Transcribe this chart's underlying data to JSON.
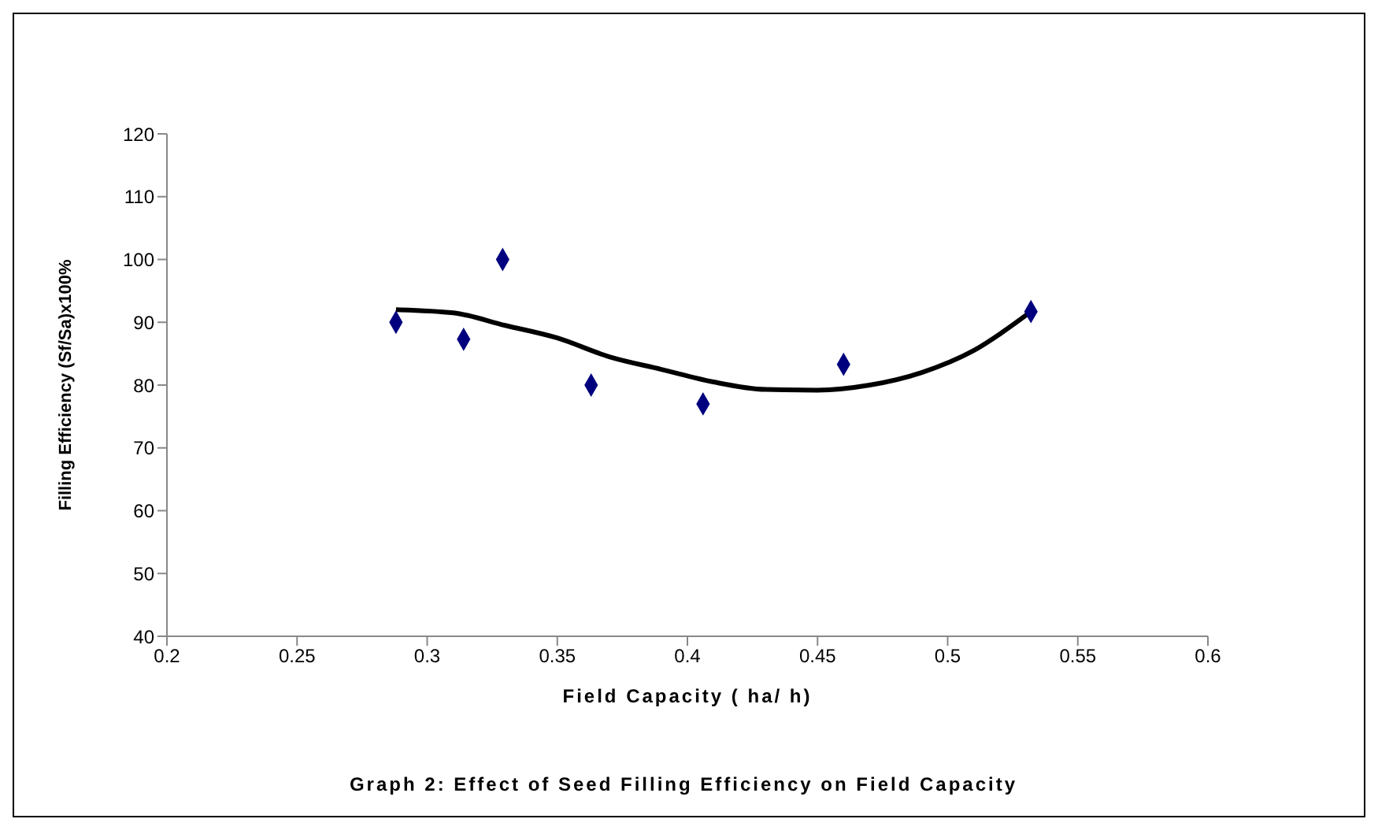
{
  "chart_data": {
    "type": "scatter",
    "title": "Graph 2: Effect of Seed Filling Efficiency on Field Capacity",
    "xlabel": "Field Capacity ( ha/ h)",
    "ylabel": "Filling Efficiency (Sf/Sa)x100%",
    "xlim": [
      0.2,
      0.6
    ],
    "xticks": [
      0.2,
      0.25,
      0.3,
      0.35,
      0.4,
      0.45,
      0.5,
      0.55,
      0.6
    ],
    "ylim": [
      40,
      120
    ],
    "yticks": [
      40,
      50,
      60,
      70,
      80,
      90,
      100,
      110,
      120
    ],
    "grid": false,
    "series": [
      {
        "marker": "diamond",
        "color": "#00007f",
        "x": [
          0.288,
          0.314,
          0.329,
          0.363,
          0.406,
          0.46,
          0.532
        ],
        "values": [
          90,
          87.3,
          100,
          80,
          77,
          83.3,
          91.7
        ]
      },
      {
        "type": "line",
        "color": "#000000",
        "x": [
          0.288,
          0.31,
          0.33,
          0.35,
          0.37,
          0.39,
          0.41,
          0.43,
          0.45,
          0.47,
          0.49,
          0.51,
          0.532
        ],
        "values": [
          92,
          91.5,
          89.5,
          87.5,
          84.5,
          82.5,
          80.5,
          79.3,
          79.2,
          80,
          82,
          85.5,
          91.7
        ]
      }
    ]
  }
}
